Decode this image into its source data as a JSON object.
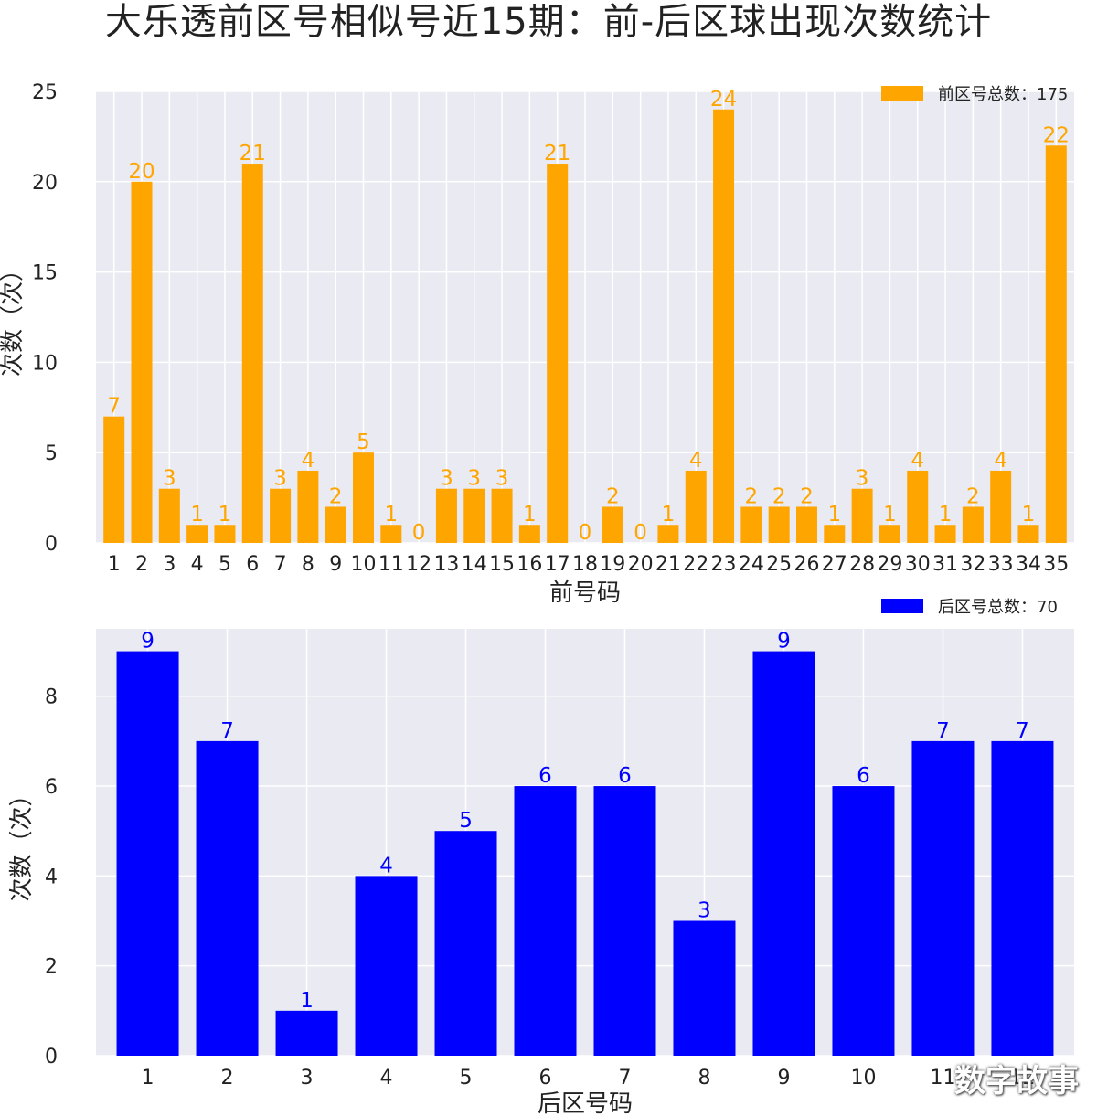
{
  "title": "大乐透前区号相似号近15期：前-后区球出现次数统计",
  "watermark": "数字故事",
  "chart_data": [
    {
      "type": "bar",
      "xlabel": "前号码",
      "ylabel": "次数（次）",
      "ylim": [
        0,
        25
      ],
      "yticks": [
        0,
        5,
        10,
        15,
        20,
        25
      ],
      "color": "#FFA500",
      "legend": "前区号总数：175",
      "legend_position": "top-right",
      "grid": true,
      "categories": [
        "1",
        "2",
        "3",
        "4",
        "5",
        "6",
        "7",
        "8",
        "9",
        "10",
        "11",
        "12",
        "13",
        "14",
        "15",
        "16",
        "17",
        "18",
        "19",
        "20",
        "21",
        "22",
        "23",
        "24",
        "25",
        "26",
        "27",
        "28",
        "29",
        "30",
        "31",
        "32",
        "33",
        "34",
        "35"
      ],
      "values": [
        7,
        20,
        3,
        1,
        1,
        21,
        3,
        4,
        2,
        5,
        1,
        0,
        3,
        3,
        3,
        1,
        21,
        0,
        2,
        0,
        1,
        4,
        24,
        2,
        2,
        2,
        1,
        3,
        1,
        4,
        1,
        2,
        4,
        1,
        22
      ]
    },
    {
      "type": "bar",
      "xlabel": "后区号码",
      "ylabel": "次数（次）",
      "ylim": [
        0,
        9.5
      ],
      "yticks": [
        0,
        2,
        4,
        6,
        8
      ],
      "color": "#0000FF",
      "legend": "后区号总数：70",
      "legend_position": "top-right",
      "grid": true,
      "categories": [
        "1",
        "2",
        "3",
        "4",
        "5",
        "6",
        "7",
        "8",
        "9",
        "10",
        "11",
        "12"
      ],
      "values": [
        9,
        7,
        1,
        4,
        5,
        6,
        6,
        3,
        9,
        6,
        7,
        7
      ]
    }
  ]
}
